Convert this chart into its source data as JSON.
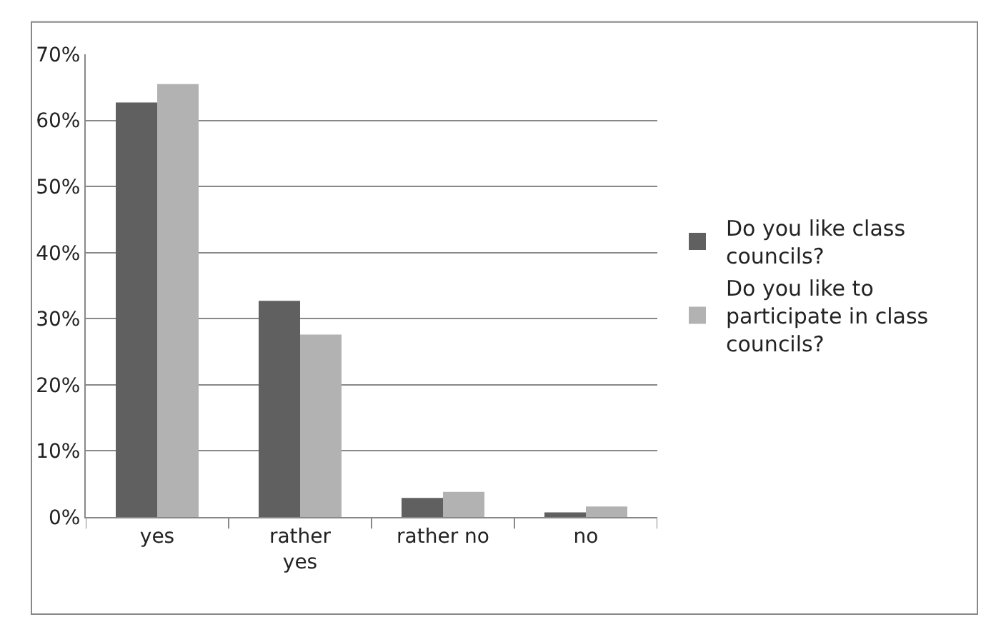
{
  "chart_data": {
    "type": "bar",
    "categories": [
      "yes",
      "rather\nyes",
      "rather no",
      "no"
    ],
    "series": [
      {
        "name": "Do you like class\ncouncils?",
        "color": "#606060",
        "values": [
          62.7,
          32.7,
          2.9,
          0.7
        ]
      },
      {
        "name": "Do you like to\nparticipate in class\ncouncils?",
        "color": "#b2b2b2",
        "values": [
          65.5,
          27.6,
          3.8,
          1.6
        ]
      }
    ],
    "ylim": [
      0,
      70
    ],
    "yticks": [
      {
        "value": 0,
        "label": "0%"
      },
      {
        "value": 10,
        "label": "10%"
      },
      {
        "value": 20,
        "label": "20%"
      },
      {
        "value": 30,
        "label": "30%"
      },
      {
        "value": 40,
        "label": "40%"
      },
      {
        "value": 50,
        "label": "50%"
      },
      {
        "value": 60,
        "label": "60%"
      },
      {
        "value": 70,
        "label": "70%"
      }
    ],
    "grid": "y",
    "legend": "right"
  }
}
